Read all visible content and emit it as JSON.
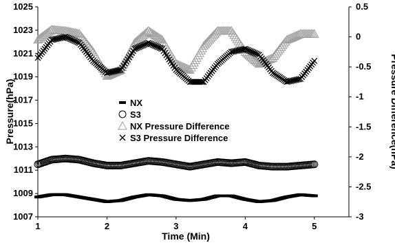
{
  "chart_data": {
    "type": "scatter",
    "title": "",
    "xlabel": "Time (Min)",
    "ylabel_left": "Pressure(hPa)",
    "ylabel_right": "Pressure Difference(hPa)",
    "xlim": [
      1,
      5.5
    ],
    "ylim_left": [
      1007,
      1025
    ],
    "ylim_right": [
      -3,
      0.5
    ],
    "x_ticks": [
      "1",
      "2",
      "3",
      "4",
      "5"
    ],
    "y_left_ticks": [
      "1007",
      "1009",
      "1011",
      "1013",
      "1015",
      "1017",
      "1019",
      "1021",
      "1023",
      "1025"
    ],
    "y_right_ticks": [
      "-3",
      "-2.5",
      "-2",
      "-1.5",
      "-1",
      "-0.5",
      "0",
      "0.5"
    ],
    "legend_position": "center-left",
    "grid": false,
    "x": [
      1.0,
      1.2,
      1.4,
      1.6,
      1.8,
      2.0,
      2.2,
      2.4,
      2.6,
      2.8,
      3.0,
      3.2,
      3.4,
      3.6,
      3.8,
      4.0,
      4.2,
      4.4,
      4.6,
      4.8,
      5.0
    ],
    "series": [
      {
        "name": "NX",
        "axis": "left",
        "marker": "dash",
        "color": "#000000",
        "values": [
          1008.7,
          1008.9,
          1008.9,
          1008.7,
          1008.5,
          1008.3,
          1008.4,
          1008.7,
          1008.9,
          1008.8,
          1008.5,
          1008.4,
          1008.5,
          1008.8,
          1008.8,
          1008.5,
          1008.3,
          1008.4,
          1008.7,
          1008.9,
          1008.8
        ]
      },
      {
        "name": "S3",
        "axis": "left",
        "marker": "circle",
        "color": "#000000",
        "values": [
          1011.5,
          1011.9,
          1012.0,
          1011.9,
          1011.6,
          1011.4,
          1011.4,
          1011.6,
          1011.8,
          1011.7,
          1011.5,
          1011.3,
          1011.5,
          1011.7,
          1011.6,
          1011.7,
          1011.4,
          1011.3,
          1011.3,
          1011.4,
          1011.5
        ]
      },
      {
        "name": "NX Pressure Difference",
        "axis": "right",
        "marker": "triangle",
        "color": "#a0a0a0",
        "values": [
          -0.05,
          0.12,
          0.1,
          0.05,
          -0.25,
          -0.65,
          -0.55,
          -0.1,
          0.1,
          -0.05,
          -0.45,
          -0.55,
          -0.15,
          0.1,
          0.1,
          -0.25,
          -0.45,
          -0.35,
          -0.05,
          0.05,
          0.05
        ]
      },
      {
        "name": "S3 Pressure Difference",
        "axis": "right",
        "marker": "x",
        "color": "#000000",
        "values": [
          -0.35,
          -0.05,
          0.0,
          -0.1,
          -0.4,
          -0.6,
          -0.55,
          -0.2,
          -0.1,
          -0.2,
          -0.55,
          -0.75,
          -0.75,
          -0.45,
          -0.25,
          -0.2,
          -0.3,
          -0.6,
          -0.75,
          -0.7,
          -0.4
        ]
      }
    ]
  }
}
